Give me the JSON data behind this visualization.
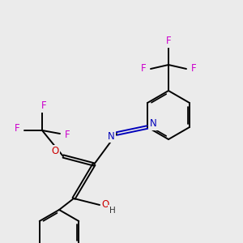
{
  "bg_color": "#ebebeb",
  "atom_colors": {
    "C": "#000000",
    "H": "#333333",
    "F": "#cc00cc",
    "N": "#0000bb",
    "O": "#cc0000"
  },
  "bond_color": "#000000",
  "bond_width": 1.4,
  "dbo": 0.012,
  "font_size": 8.5
}
